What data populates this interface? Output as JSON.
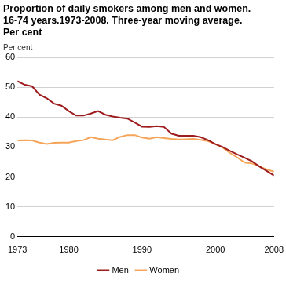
{
  "chart_data": {
    "type": "line",
    "title": [
      "Proportion of daily smokers among men and women.",
      "16-74 years.1973-2008. Three-year moving average.",
      "Per cent"
    ],
    "y_label": "Per cent",
    "x": [
      1973,
      1974,
      1975,
      1976,
      1977,
      1978,
      1979,
      1980,
      1981,
      1982,
      1983,
      1984,
      1985,
      1986,
      1987,
      1988,
      1989,
      1990,
      1991,
      1992,
      1993,
      1994,
      1995,
      1996,
      1997,
      1998,
      1999,
      2000,
      2001,
      2002,
      2003,
      2004,
      2005,
      2006,
      2007,
      2008
    ],
    "series": [
      {
        "name": "Men",
        "color": "#9e1b1e",
        "values": [
          52,
          50.8,
          50.3,
          47.5,
          46.3,
          44.5,
          43.8,
          42,
          40.5,
          40.5,
          41.2,
          42,
          40.8,
          40.2,
          39.8,
          39.5,
          38.2,
          36.8,
          36.7,
          37,
          36.7,
          34.5,
          33.8,
          33.8,
          33.8,
          33.3,
          32.3,
          31,
          30,
          28.7,
          27.5,
          26.4,
          25.2,
          23.5,
          22,
          20.5
        ]
      },
      {
        "name": "Women",
        "color": "#f5a55a",
        "values": [
          32.2,
          32.3,
          32.2,
          31.5,
          31.0,
          31.4,
          31.5,
          31.5,
          32,
          32.3,
          33.3,
          32.8,
          32.5,
          32.3,
          33.4,
          34,
          34,
          33.2,
          32.8,
          33.3,
          33,
          32.7,
          32.5,
          32.6,
          32.7,
          32.4,
          32,
          31,
          29.8,
          28,
          26.5,
          24.8,
          24.5,
          23.5,
          22.5,
          21.8
        ]
      }
    ],
    "xlim": [
      1973,
      2008
    ],
    "xticks": [
      1973,
      1980,
      1990,
      2000,
      2008
    ],
    "ylim": [
      0,
      60
    ],
    "yticks": [
      0,
      10,
      20,
      30,
      40,
      50,
      60
    ],
    "grid": true,
    "legend": "bottom"
  }
}
